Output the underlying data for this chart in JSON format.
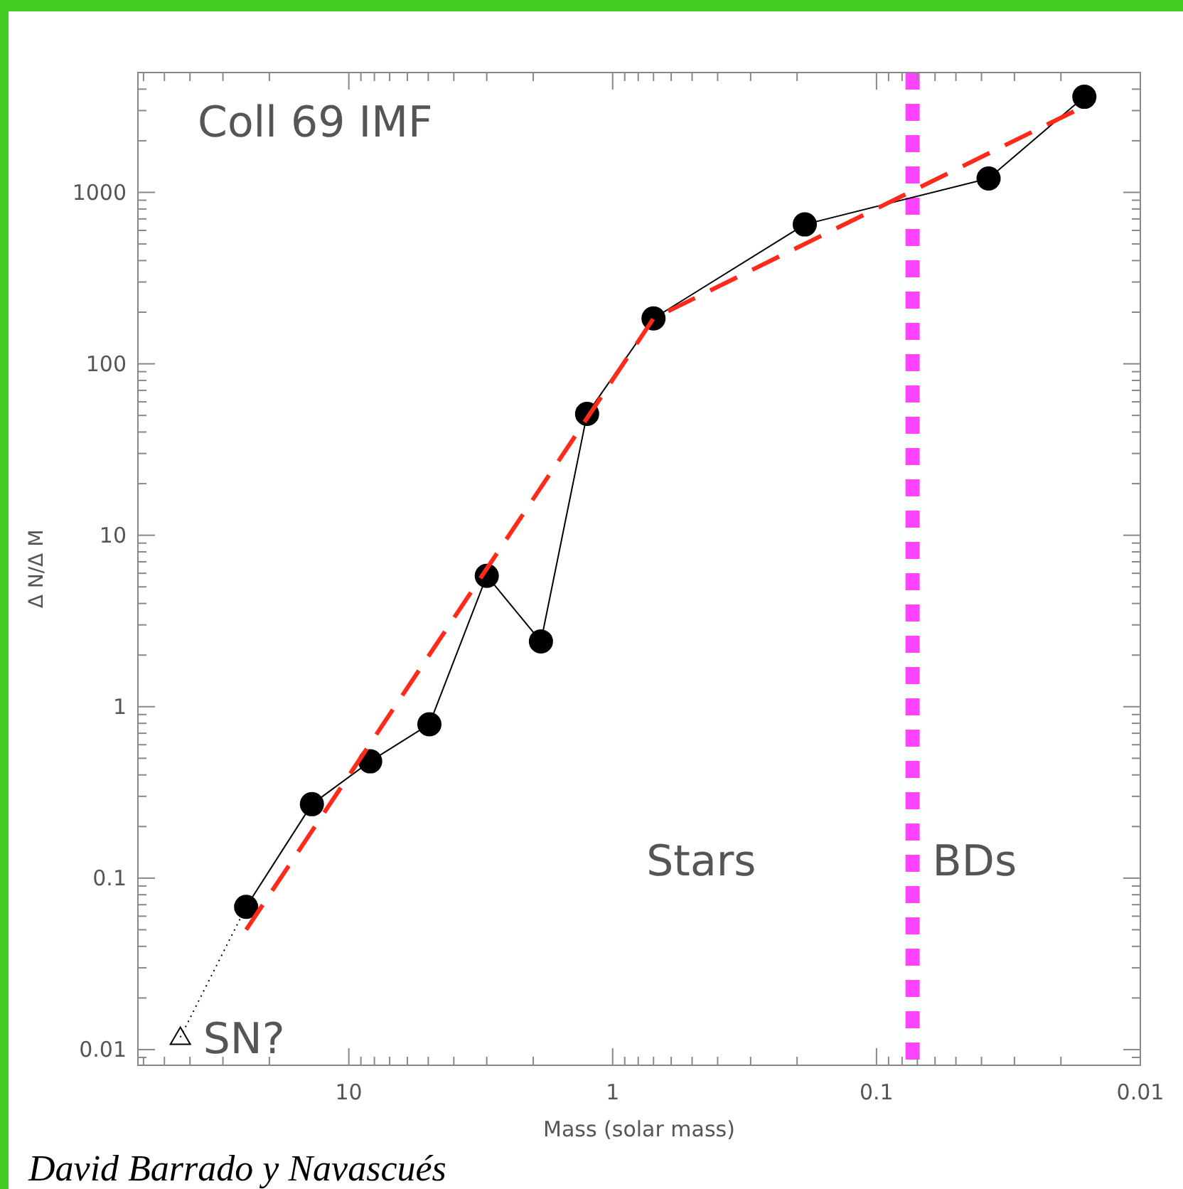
{
  "chart_data": {
    "type": "line",
    "title": "Coll 69 IMF",
    "xlabel": "Mass (solar mass)",
    "ylabel": "Δ N/Δ M",
    "log": "xy",
    "grid": false,
    "xlim": [
      63,
      0.01
    ],
    "ylim": [
      0.0081,
      5000
    ],
    "xticks": [
      {
        "value": 60,
        "label": null
      },
      {
        "value": 50,
        "label": null
      },
      {
        "value": 40,
        "label": null
      },
      {
        "value": 30,
        "label": null
      },
      {
        "value": 20,
        "label": null
      },
      10,
      {
        "value": 9,
        "label": null
      },
      {
        "value": 8,
        "label": null
      },
      {
        "value": 7,
        "label": null
      },
      {
        "value": 6,
        "label": null
      },
      {
        "value": 5,
        "label": null
      },
      {
        "value": 4,
        "label": null
      },
      {
        "value": 3,
        "label": null
      },
      {
        "value": 2,
        "label": null
      },
      1,
      {
        "value": 0.9,
        "label": null
      },
      {
        "value": 0.8,
        "label": null
      },
      {
        "value": 0.7,
        "label": null
      },
      {
        "value": 0.6,
        "label": null
      },
      {
        "value": 0.5,
        "label": null
      },
      {
        "value": 0.4,
        "label": null
      },
      {
        "value": 0.3,
        "label": null
      },
      {
        "value": 0.2,
        "label": null
      },
      0.1,
      {
        "value": 0.09,
        "label": null
      },
      {
        "value": 0.08,
        "label": null
      },
      {
        "value": 0.07,
        "label": null
      },
      {
        "value": 0.06,
        "label": null
      },
      {
        "value": 0.05,
        "label": null
      },
      {
        "value": 0.04,
        "label": null
      },
      {
        "value": 0.03,
        "label": null
      },
      {
        "value": 0.02,
        "label": null
      },
      0.01
    ],
    "yticks": [
      {
        "value": 0.009,
        "label": null
      },
      0.01,
      {
        "value": 0.02,
        "label": null
      },
      {
        "value": 0.03,
        "label": null
      },
      {
        "value": 0.04,
        "label": null
      },
      {
        "value": 0.05,
        "label": null
      },
      {
        "value": 0.06,
        "label": null
      },
      {
        "value": 0.07,
        "label": null
      },
      {
        "value": 0.08,
        "label": null
      },
      {
        "value": 0.09,
        "label": null
      },
      0.1,
      {
        "value": 0.2,
        "label": null
      },
      {
        "value": 0.3,
        "label": null
      },
      {
        "value": 0.4,
        "label": null
      },
      {
        "value": 0.5,
        "label": null
      },
      {
        "value": 0.6,
        "label": null
      },
      {
        "value": 0.7,
        "label": null
      },
      {
        "value": 0.8,
        "label": null
      },
      {
        "value": 0.9,
        "label": null
      },
      1,
      {
        "value": 2,
        "label": null
      },
      {
        "value": 3,
        "label": null
      },
      {
        "value": 4,
        "label": null
      },
      {
        "value": 5,
        "label": null
      },
      {
        "value": 6,
        "label": null
      },
      {
        "value": 7,
        "label": null
      },
      {
        "value": 8,
        "label": null
      },
      {
        "value": 9,
        "label": null
      },
      10,
      {
        "value": 20,
        "label": null
      },
      {
        "value": 30,
        "label": null
      },
      {
        "value": 40,
        "label": null
      },
      {
        "value": 50,
        "label": null
      },
      {
        "value": 60,
        "label": null
      },
      {
        "value": 70,
        "label": null
      },
      {
        "value": 80,
        "label": null
      },
      {
        "value": 90,
        "label": null
      },
      100,
      {
        "value": 200,
        "label": null
      },
      {
        "value": 300,
        "label": null
      },
      {
        "value": 400,
        "label": null
      },
      {
        "value": 500,
        "label": null
      },
      {
        "value": 600,
        "label": null
      },
      {
        "value": 700,
        "label": null
      },
      {
        "value": 800,
        "label": null
      },
      {
        "value": 900,
        "label": null
      },
      1000,
      {
        "value": 2000,
        "label": null
      },
      {
        "value": 3000,
        "label": null
      },
      {
        "value": 4000,
        "label": null
      },
      {
        "value": 5000,
        "label": null
      }
    ],
    "series": [
      {
        "color": "#000000",
        "marker": "circle",
        "line_style": "solid",
        "x": [
          24.5,
          13.8,
          8.3,
          4.95,
          3.0,
          1.87,
          1.25,
          0.7,
          0.187,
          0.0376,
          0.0163
        ],
        "values": [
          0.068,
          0.27,
          0.48,
          0.79,
          5.8,
          2.4,
          51,
          184,
          650,
          1206,
          3610
        ]
      },
      {
        "color": "#ff2a1a",
        "marker": "none",
        "line_style": "dashed",
        "x": [
          24.5,
          0.7,
          0.0163
        ],
        "values": [
          0.05,
          184,
          3180
        ]
      },
      {
        "color": "#000000",
        "marker": "none",
        "line_style": "dotted",
        "x": [
          43.5,
          24.5
        ],
        "values": [
          0.0118,
          0.068
        ]
      },
      {
        "type": "scatter",
        "color": "#000000",
        "marker": "triangle",
        "x": [
          43.5
        ],
        "values": [
          0.0118
        ]
      }
    ],
    "ref_lines": [
      {
        "axis": "x",
        "value": 0.073,
        "color": "#ff44ff",
        "line_style": "dashed"
      }
    ],
    "annotations": [
      {
        "text": "SN?",
        "x": 43.5,
        "y": 0.0118
      },
      "Stars",
      "BDs",
      "David Barrado y Navascués"
    ]
  }
}
